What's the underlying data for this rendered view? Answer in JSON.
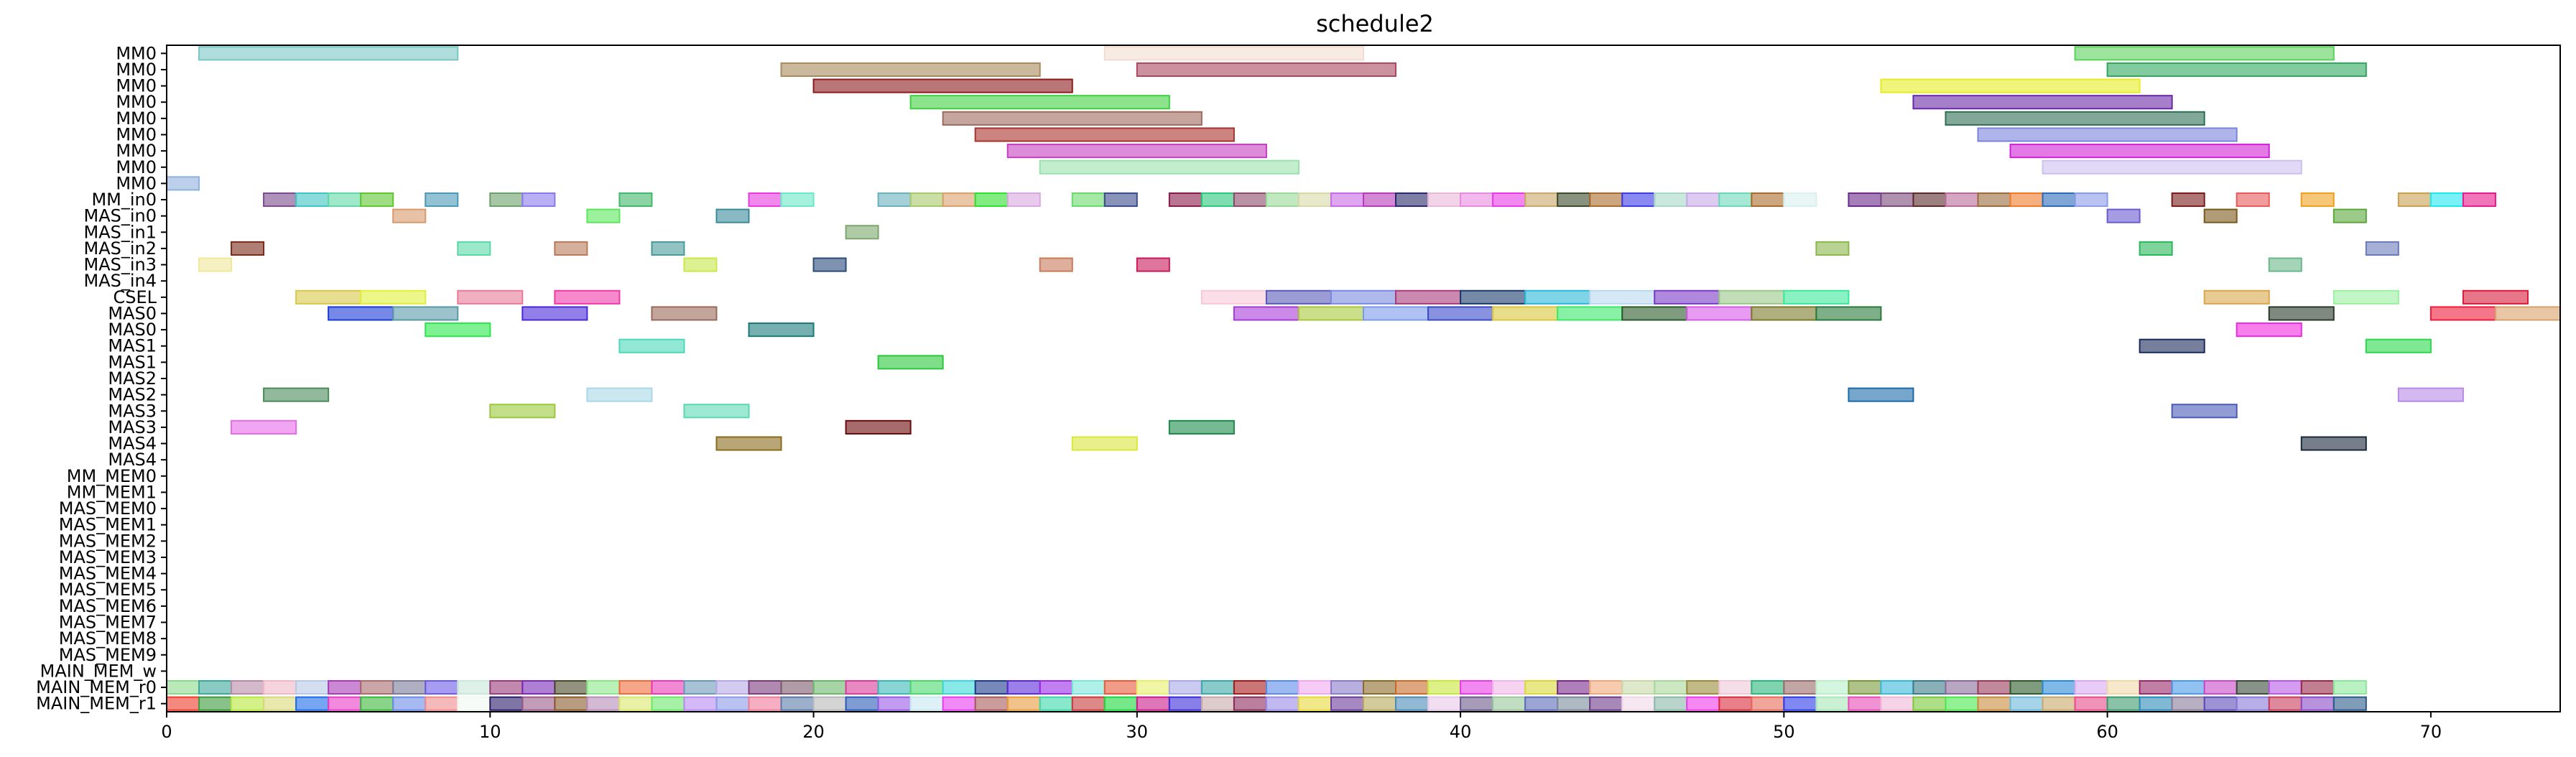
{
  "chart_data": {
    "type": "gantt",
    "title": "schedule2",
    "xlim": [
      0,
      74
    ],
    "xticks": [
      0,
      10,
      20,
      30,
      40,
      50,
      60,
      70
    ],
    "grid": false,
    "rows": [
      "MM0",
      "MM0",
      "MM0",
      "MM0",
      "MM0",
      "MM0",
      "MM0",
      "MM0",
      "MM0",
      "MM_in0",
      "MAS_in0",
      "MAS_in1",
      "MAS_in2",
      "MAS_in3",
      "MAS_in4",
      "CSEL",
      "MAS0",
      "MAS0",
      "MAS1",
      "MAS1",
      "MAS2",
      "MAS2",
      "MAS3",
      "MAS3",
      "MAS4",
      "MAS4",
      "MM_MEM0",
      "MM_MEM1",
      "MAS_MEM0",
      "MAS_MEM1",
      "MAS_MEM2",
      "MAS_MEM3",
      "MAS_MEM4",
      "MAS_MEM5",
      "MAS_MEM6",
      "MAS_MEM7",
      "MAS_MEM8",
      "MAS_MEM9",
      "MAIN_MEM_w",
      "MAIN_MEM_r0",
      "MAIN_MEM_r1"
    ],
    "tasks": [
      {
        "row": 0,
        "start": 1,
        "end": 9,
        "color": "#79c7c3"
      },
      {
        "row": 0,
        "start": 29,
        "end": 37,
        "color": "#f3ddd0"
      },
      {
        "row": 0,
        "start": 59,
        "end": 67,
        "color": "#5ad25a"
      },
      {
        "row": 1,
        "start": 19,
        "end": 27,
        "color": "#a98a5e"
      },
      {
        "row": 1,
        "start": 30,
        "end": 38,
        "color": "#a9475f"
      },
      {
        "row": 1,
        "start": 60,
        "end": 68,
        "color": "#2fa85e"
      },
      {
        "row": 2,
        "start": 20,
        "end": 28,
        "color": "#8c1a1a"
      },
      {
        "row": 2,
        "start": 53,
        "end": 61,
        "color": "#e8ec22"
      },
      {
        "row": 3,
        "start": 23,
        "end": 31,
        "color": "#3fd03f"
      },
      {
        "row": 3,
        "start": 54,
        "end": 62,
        "color": "#6a2aa8"
      },
      {
        "row": 4,
        "start": 24,
        "end": 32,
        "color": "#9e6a5e"
      },
      {
        "row": 4,
        "start": 55,
        "end": 63,
        "color": "#2e6e55"
      },
      {
        "row": 5,
        "start": 25,
        "end": 33,
        "color": "#a8322c"
      },
      {
        "row": 5,
        "start": 56,
        "end": 64,
        "color": "#7a84dc"
      },
      {
        "row": 6,
        "start": 26,
        "end": 34,
        "color": "#c43fc0"
      },
      {
        "row": 6,
        "start": 57,
        "end": 65,
        "color": "#d022d6"
      },
      {
        "row": 7,
        "start": 27,
        "end": 35,
        "color": "#9ae2ac"
      },
      {
        "row": 7,
        "start": 58,
        "end": 66,
        "color": "#cdc0ee"
      },
      {
        "row": 8,
        "start": 0,
        "end": 1,
        "color": "#8fb1de"
      },
      {
        "row": 9,
        "start": 3,
        "end": 4,
        "color": "#7a4a8a"
      },
      {
        "row": 9,
        "start": 4,
        "end": 5,
        "color": "#3fc3c3"
      },
      {
        "row": 9,
        "start": 5,
        "end": 6,
        "color": "#5fd8a6"
      },
      {
        "row": 9,
        "start": 6,
        "end": 7,
        "color": "#5fc62f"
      },
      {
        "row": 9,
        "start": 8,
        "end": 9,
        "color": "#4a9ab5"
      },
      {
        "row": 9,
        "start": 10,
        "end": 11,
        "color": "#6aa06a"
      },
      {
        "row": 9,
        "start": 11,
        "end": 12,
        "color": "#8a7aee"
      },
      {
        "row": 9,
        "start": 14,
        "end": 15,
        "color": "#3fb86a"
      },
      {
        "row": 9,
        "start": 18,
        "end": 19,
        "color": "#e83ae0"
      },
      {
        "row": 9,
        "start": 19,
        "end": 20,
        "color": "#6ae8c8"
      },
      {
        "row": 9,
        "start": 22,
        "end": 23,
        "color": "#6ab0be"
      },
      {
        "row": 9,
        "start": 23,
        "end": 24,
        "color": "#a8c86a"
      },
      {
        "row": 9,
        "start": 24,
        "end": 25,
        "color": "#d8a06a"
      },
      {
        "row": 9,
        "start": 25,
        "end": 26,
        "color": "#2fe02f"
      },
      {
        "row": 9,
        "start": 26,
        "end": 27,
        "color": "#d8a8e0"
      },
      {
        "row": 9,
        "start": 28,
        "end": 29,
        "color": "#6ad86a"
      },
      {
        "row": 9,
        "start": 29,
        "end": 30,
        "color": "#3a4a8a"
      },
      {
        "row": 9,
        "start": 31,
        "end": 32,
        "color": "#8a1a4a"
      },
      {
        "row": 9,
        "start": 32,
        "end": 33,
        "color": "#2ac87a"
      },
      {
        "row": 9,
        "start": 33,
        "end": 34,
        "color": "#8a4a6a"
      },
      {
        "row": 9,
        "start": 34,
        "end": 35,
        "color": "#9ad89a"
      },
      {
        "row": 9,
        "start": 35,
        "end": 36,
        "color": "#d8d8a8"
      },
      {
        "row": 9,
        "start": 36,
        "end": 37,
        "color": "#c86ae8"
      },
      {
        "row": 9,
        "start": 37,
        "end": 38,
        "color": "#b83ab8"
      },
      {
        "row": 9,
        "start": 38,
        "end": 39,
        "color": "#2a2a6a"
      },
      {
        "row": 9,
        "start": 39,
        "end": 40,
        "color": "#e8b8d8"
      },
      {
        "row": 9,
        "start": 40,
        "end": 41,
        "color": "#e88ae0"
      },
      {
        "row": 9,
        "start": 41,
        "end": 42,
        "color": "#e83ae8"
      },
      {
        "row": 9,
        "start": 42,
        "end": 43,
        "color": "#c8a86a"
      },
      {
        "row": 9,
        "start": 43,
        "end": 44,
        "color": "#3a4a2a"
      },
      {
        "row": 9,
        "start": 44,
        "end": 45,
        "color": "#a86a2a"
      },
      {
        "row": 9,
        "start": 45,
        "end": 46,
        "color": "#3a3ae8"
      },
      {
        "row": 9,
        "start": 46,
        "end": 47,
        "color": "#a8d8c8"
      },
      {
        "row": 9,
        "start": 47,
        "end": 48,
        "color": "#c8a8e8"
      },
      {
        "row": 9,
        "start": 48,
        "end": 49,
        "color": "#6ad8b8"
      },
      {
        "row": 9,
        "start": 49,
        "end": 50,
        "color": "#a86a2a"
      },
      {
        "row": 9,
        "start": 50,
        "end": 51,
        "color": "#d8f0ee"
      },
      {
        "row": 9,
        "start": 52,
        "end": 53,
        "color": "#6a2a8a"
      },
      {
        "row": 9,
        "start": 53,
        "end": 54,
        "color": "#7a4a7a"
      },
      {
        "row": 9,
        "start": 54,
        "end": 55,
        "color": "#5a2a2a"
      },
      {
        "row": 9,
        "start": 55,
        "end": 56,
        "color": "#b86a9a"
      },
      {
        "row": 9,
        "start": 56,
        "end": 57,
        "color": "#9a6a3a"
      },
      {
        "row": 9,
        "start": 57,
        "end": 58,
        "color": "#f07a2a"
      },
      {
        "row": 9,
        "start": 58,
        "end": 59,
        "color": "#2a6ab8"
      },
      {
        "row": 9,
        "start": 59,
        "end": 60,
        "color": "#8a9ae8"
      },
      {
        "row": 9,
        "start": 62,
        "end": 63,
        "color": "#7a1a1a"
      },
      {
        "row": 9,
        "start": 64,
        "end": 65,
        "color": "#e85a5a"
      },
      {
        "row": 9,
        "start": 66,
        "end": 67,
        "color": "#f0a020"
      },
      {
        "row": 9,
        "start": 69,
        "end": 70,
        "color": "#c8a050"
      },
      {
        "row": 9,
        "start": 70,
        "end": 71,
        "color": "#20e8f0"
      },
      {
        "row": 9,
        "start": 71,
        "end": 72,
        "color": "#e81a8a"
      },
      {
        "row": 10,
        "start": 7,
        "end": 8,
        "color": "#d89a6a"
      },
      {
        "row": 10,
        "start": 13,
        "end": 14,
        "color": "#5ae85a"
      },
      {
        "row": 10,
        "start": 17,
        "end": 18,
        "color": "#3a8a9a"
      },
      {
        "row": 10,
        "start": 60,
        "end": 61,
        "color": "#6a5ad0"
      },
      {
        "row": 10,
        "start": 63,
        "end": 64,
        "color": "#7a5a1a"
      },
      {
        "row": 10,
        "start": 67,
        "end": 68,
        "color": "#5aa83a"
      },
      {
        "row": 11,
        "start": 21,
        "end": 22,
        "color": "#7aa86a"
      },
      {
        "row": 12,
        "start": 2,
        "end": 3,
        "color": "#7a2a1a"
      },
      {
        "row": 12,
        "start": 9,
        "end": 10,
        "color": "#5ad8a8"
      },
      {
        "row": 12,
        "start": 12,
        "end": 13,
        "color": "#b87a5a"
      },
      {
        "row": 12,
        "start": 15,
        "end": 16,
        "color": "#4a9a9a"
      },
      {
        "row": 12,
        "start": 51,
        "end": 52,
        "color": "#8ab84a"
      },
      {
        "row": 12,
        "start": 61,
        "end": 62,
        "color": "#2ab85a"
      },
      {
        "row": 12,
        "start": 68,
        "end": 69,
        "color": "#6a7ab8"
      },
      {
        "row": 13,
        "start": 1,
        "end": 2,
        "color": "#f0e89a"
      },
      {
        "row": 13,
        "start": 16,
        "end": 17,
        "color": "#c8e84a"
      },
      {
        "row": 13,
        "start": 20,
        "end": 21,
        "color": "#2a4a7a"
      },
      {
        "row": 13,
        "start": 27,
        "end": 28,
        "color": "#c87a5a"
      },
      {
        "row": 13,
        "start": 30,
        "end": 31,
        "color": "#c81a5a"
      },
      {
        "row": 13,
        "start": 65,
        "end": 66,
        "color": "#6ab88a"
      },
      {
        "row": 15,
        "start": 4,
        "end": 6,
        "color": "#d8c84a"
      },
      {
        "row": 15,
        "start": 6,
        "end": 8,
        "color": "#e0f03a"
      },
      {
        "row": 15,
        "start": 9,
        "end": 11,
        "color": "#e87a9a"
      },
      {
        "row": 15,
        "start": 12,
        "end": 14,
        "color": "#f03aa8"
      },
      {
        "row": 15,
        "start": 32,
        "end": 34,
        "color": "#f8c8d8"
      },
      {
        "row": 15,
        "start": 34,
        "end": 36,
        "color": "#5a5ab8"
      },
      {
        "row": 15,
        "start": 36,
        "end": 38,
        "color": "#7a8ae0"
      },
      {
        "row": 15,
        "start": 38,
        "end": 40,
        "color": "#a83a7a"
      },
      {
        "row": 15,
        "start": 40,
        "end": 42,
        "color": "#1a3a6a"
      },
      {
        "row": 15,
        "start": 42,
        "end": 44,
        "color": "#2ab8d8"
      },
      {
        "row": 15,
        "start": 44,
        "end": 46,
        "color": "#b8d8f0"
      },
      {
        "row": 15,
        "start": 46,
        "end": 48,
        "color": "#7a3ac8"
      },
      {
        "row": 15,
        "start": 48,
        "end": 50,
        "color": "#9ac88a"
      },
      {
        "row": 15,
        "start": 50,
        "end": 52,
        "color": "#3ae89a"
      },
      {
        "row": 15,
        "start": 63,
        "end": 65,
        "color": "#d8a84a"
      },
      {
        "row": 15,
        "start": 67,
        "end": 69,
        "color": "#9af0a0"
      },
      {
        "row": 15,
        "start": 71,
        "end": 73,
        "color": "#d81a3a"
      },
      {
        "row": 16,
        "start": 5,
        "end": 7,
        "color": "#1a3ad8"
      },
      {
        "row": 16,
        "start": 7,
        "end": 9,
        "color": "#5a9aa8"
      },
      {
        "row": 16,
        "start": 11,
        "end": 13,
        "color": "#4a2ad8"
      },
      {
        "row": 16,
        "start": 15,
        "end": 17,
        "color": "#9a6a5a"
      },
      {
        "row": 16,
        "start": 33,
        "end": 35,
        "color": "#a83ad8"
      },
      {
        "row": 16,
        "start": 35,
        "end": 37,
        "color": "#a8c83a"
      },
      {
        "row": 16,
        "start": 37,
        "end": 39,
        "color": "#7a9ae8"
      },
      {
        "row": 16,
        "start": 39,
        "end": 41,
        "color": "#3a4ac8"
      },
      {
        "row": 16,
        "start": 41,
        "end": 43,
        "color": "#d8c83a"
      },
      {
        "row": 16,
        "start": 43,
        "end": 45,
        "color": "#3ae86a"
      },
      {
        "row": 16,
        "start": 45,
        "end": 47,
        "color": "#2a5a2a"
      },
      {
        "row": 16,
        "start": 47,
        "end": 49,
        "color": "#d85ae8"
      },
      {
        "row": 16,
        "start": 49,
        "end": 51,
        "color": "#7a7a2a"
      },
      {
        "row": 16,
        "start": 51,
        "end": 53,
        "color": "#2a7a3a"
      },
      {
        "row": 16,
        "start": 65,
        "end": 67,
        "color": "#2a3a2a"
      },
      {
        "row": 16,
        "start": 70,
        "end": 72,
        "color": "#f01a3a"
      },
      {
        "row": 16,
        "start": 72,
        "end": 74,
        "color": "#d8a06a"
      },
      {
        "row": 17,
        "start": 8,
        "end": 10,
        "color": "#2ae84a"
      },
      {
        "row": 17,
        "start": 18,
        "end": 20,
        "color": "#1a7a7a"
      },
      {
        "row": 17,
        "start": 64,
        "end": 66,
        "color": "#f02ae0"
      },
      {
        "row": 18,
        "start": 14,
        "end": 16,
        "color": "#4ad8b8"
      },
      {
        "row": 18,
        "start": 61,
        "end": 63,
        "color": "#1a2a5a"
      },
      {
        "row": 18,
        "start": 68,
        "end": 70,
        "color": "#2ad84a"
      },
      {
        "row": 19,
        "start": 22,
        "end": 24,
        "color": "#2ac83a"
      },
      {
        "row": 21,
        "start": 3,
        "end": 5,
        "color": "#4a8a5a"
      },
      {
        "row": 21,
        "start": 13,
        "end": 15,
        "color": "#a8d8e8"
      },
      {
        "row": 21,
        "start": 52,
        "end": 54,
        "color": "#1a6aa8"
      },
      {
        "row": 21,
        "start": 69,
        "end": 71,
        "color": "#b88ae8"
      },
      {
        "row": 22,
        "start": 10,
        "end": 12,
        "color": "#9ac83a"
      },
      {
        "row": 22,
        "start": 16,
        "end": 18,
        "color": "#5ad8b0"
      },
      {
        "row": 22,
        "start": 62,
        "end": 64,
        "color": "#4a5ab8"
      },
      {
        "row": 23,
        "start": 2,
        "end": 4,
        "color": "#e86ae8"
      },
      {
        "row": 23,
        "start": 21,
        "end": 23,
        "color": "#6a0a0a"
      },
      {
        "row": 23,
        "start": 31,
        "end": 33,
        "color": "#1a8a4a"
      },
      {
        "row": 24,
        "start": 17,
        "end": 19,
        "color": "#8a6a1a"
      },
      {
        "row": 24,
        "start": 28,
        "end": 30,
        "color": "#d8e83a"
      },
      {
        "row": 24,
        "start": 66,
        "end": 68,
        "color": "#1a2a3a"
      }
    ],
    "memory_rows": {
      "MAIN_MEM_r0": [
        "#8ad88a",
        "#3aa89a",
        "#b88aa8",
        "#f0b8c8",
        "#b8c8e8",
        "#a83ab8",
        "#a86a6a",
        "#7a7a9a",
        "#6a5ae8",
        "#c8e8d8",
        "#9a3a7a",
        "#7a2ab8",
        "#4a4a2a",
        "#8ae88a",
        "#f06a3a",
        "#e83ab8",
        "#6a9ab8",
        "#b8a8e8",
        "#7a3a7a",
        "#7a5a6a",
        "#6ab86a",
        "#d83a9a",
        "#3ab8b8",
        "#4ad86a",
        "#3ad8d8",
        "#1a3a8a",
        "#5a2ad8",
        "#9a2ae8",
        "#7ae8d8",
        "#e85a3a",
        "#e8f06a",
        "#a8a8e8",
        "#3aa8a8",
        "#a81a1a",
        "#5a8ae8",
        "#f0a8f0",
        "#8a7ac8",
        "#8a6a2a",
        "#c86a2a",
        "#c8e83a",
        "#e83ae8",
        "#f0b8e8",
        "#d8d83a",
        "#7a2a8a",
        "#f0a87a",
        "#c8d8a8",
        "#a8d89a",
        "#9a8a3a",
        "#f0c8d8",
        "#2ab87a",
        "#9a6a6a",
        "#b8f0c8",
        "#7a9a3a",
        "#3ab8d8",
        "#3a7a8a",
        "#8a6a9a",
        "#9a3a5a",
        "#2a5a2a",
        "#2a8ad8",
        "#d8a8f0",
        "#f0d8a8",
        "#9a2a6a",
        "#4a9ae8",
        "#c84ac8",
        "#3a4a3a",
        "#b85ae8",
        "#9a2a4a",
        "#8ae89a"
      ],
      "MAIN_MEM_r1": [
        "#f03a2a",
        "#3a9a3a",
        "#b8e83a",
        "#d8d87a",
        "#1a6ae8",
        "#e83ac8",
        "#3ab83a",
        "#6a8ae8",
        "#f08a8a",
        "#f0f8f0",
        "#2a1a6a",
        "#9a5a8a",
        "#8a5a2a",
        "#b88ab8",
        "#d8e86a",
        "#6ae86a",
        "#b88af0",
        "#8a9ae8",
        "#f07a9a",
        "#5a7aa8",
        "#b8b8b8",
        "#2a5ab8",
        "#9a5ae8",
        "#c8e8f0",
        "#e83af0",
        "#a85a5a",
        "#e89a3a",
        "#3ad8a8",
        "#c83a3a",
        "#1ad83a",
        "#c81a8a",
        "#3a2ad8",
        "#c8a8a8",
        "#8a2a5a",
        "#9a8ae8",
        "#e8d83a",
        "#6a3a9a",
        "#b8a85a",
        "#4a8ab8",
        "#e8c8e8",
        "#6a5a8a",
        "#9ac89a",
        "#5a6ab8",
        "#7a8a9a",
        "#6a3a8a",
        "#f0d8e8",
        "#8ab8a8",
        "#f03ae8",
        "#d82a3a",
        "#e86a5a",
        "#2a3ae8",
        "#a8e8b8",
        "#e84ab8",
        "#f0b8d8",
        "#7ac83a",
        "#4ae84a",
        "#c88a3a",
        "#6ab8d8",
        "#c8a86a",
        "#e84a8a",
        "#3a9a6a",
        "#2a8ab8",
        "#8a7a9a",
        "#5a4ab8",
        "#8a7ad8",
        "#c83a5a",
        "#8a4ac8",
        "#2a5a8a"
      ]
    }
  }
}
